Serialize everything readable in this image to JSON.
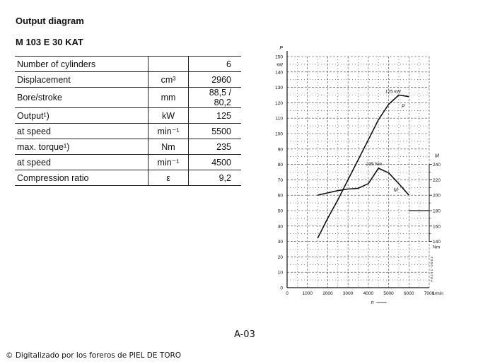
{
  "header": {
    "title": "Output diagram",
    "model": "M 103 E 30 KAT"
  },
  "specs": [
    {
      "label": "Number of cylinders",
      "unit": "",
      "value": "6"
    },
    {
      "label": "Displacement",
      "unit": "cm³",
      "value": "2960"
    },
    {
      "label": "Bore/stroke",
      "unit": "mm",
      "value": "88,5 / 80,2"
    },
    {
      "label": "Output¹)",
      "unit": "kW",
      "value": "125"
    },
    {
      "label": "at speed",
      "unit": "min⁻¹",
      "value": "5500"
    },
    {
      "label": "max. torque¹)",
      "unit": "Nm",
      "value": "235"
    },
    {
      "label": "at speed",
      "unit": "min⁻¹",
      "value": "4500"
    },
    {
      "label": "Compression ratio",
      "unit": "ε",
      "value": "9,2"
    }
  ],
  "chart_data": {
    "type": "line",
    "x_label": "n",
    "x_unit": "1/min",
    "x_ticks": [
      0,
      1000,
      2000,
      3000,
      4000,
      5000,
      6000,
      7000
    ],
    "xlim": [
      0,
      7000
    ],
    "y_left_label": "P",
    "y_left_unit": "kW",
    "y_left_ticks": [
      0,
      10,
      20,
      30,
      40,
      50,
      60,
      70,
      80,
      90,
      100,
      110,
      120,
      130,
      140,
      150
    ],
    "y_left_lim": [
      0,
      150
    ],
    "y_right_label": "M",
    "y_right_unit": "Nm",
    "y_right_ticks": [
      140,
      160,
      180,
      200,
      220,
      240
    ],
    "y_right_lim": [
      140,
      240
    ],
    "series": [
      {
        "name": "P",
        "axis": "left",
        "x": [
          1500,
          2000,
          2500,
          3000,
          3500,
          4000,
          4500,
          5000,
          5500,
          6000
        ],
        "y": [
          32,
          45,
          57,
          70,
          83,
          96,
          109,
          119,
          125,
          124
        ]
      },
      {
        "name": "M",
        "axis": "right",
        "x": [
          1500,
          2000,
          2500,
          3000,
          3500,
          4000,
          4500,
          5000,
          5500,
          6000
        ],
        "y": [
          200,
          203,
          206,
          208,
          209,
          215,
          235,
          229,
          215,
          200
        ]
      }
    ],
    "annotations": [
      {
        "text": "125 kW",
        "x": 5500,
        "y": 125,
        "axis": "left"
      },
      {
        "text": "235 Nm",
        "x": 4500,
        "y": 235,
        "axis": "right"
      }
    ],
    "side_code": "F 0 2 9 1 - 0 0 5 2"
  },
  "page_number": "A-03",
  "footer": "© Digitalizado por los foreros de PIEL DE TORO"
}
